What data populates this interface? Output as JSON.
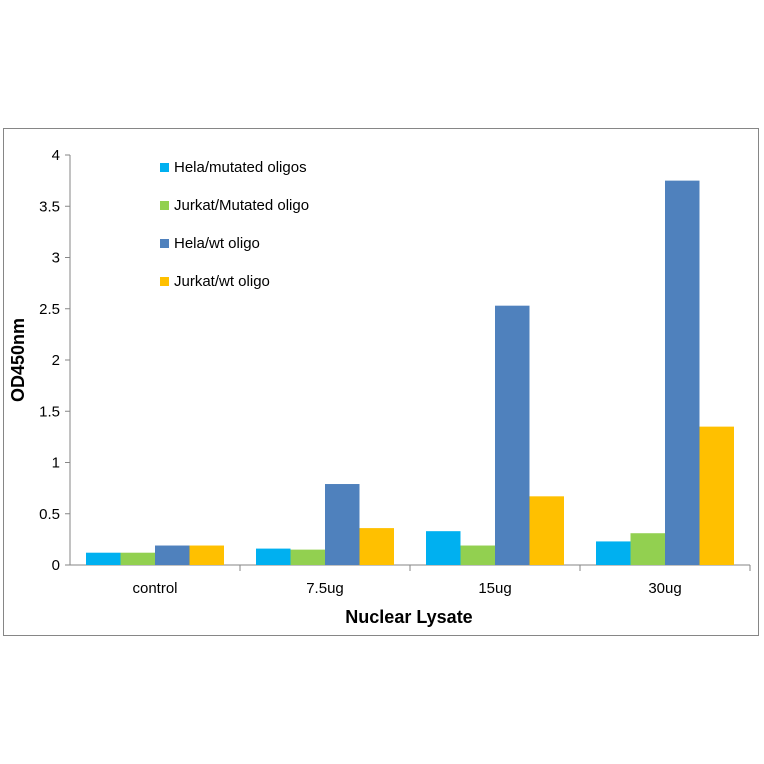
{
  "chart_data": {
    "type": "bar",
    "title": "",
    "xlabel": "Nuclear Lysate",
    "ylabel": "OD450nm",
    "ylim": [
      0,
      4
    ],
    "yticks": [
      "0",
      "0.5",
      "1",
      "1.5",
      "2",
      "2.5",
      "3",
      "3.5",
      "4"
    ],
    "grid": false,
    "legend_position": "top-left",
    "categories": [
      "control",
      "7.5ug",
      "15ug",
      "30ug"
    ],
    "series": [
      {
        "name": "Hela/mutated oligos",
        "color": "#00b0f0",
        "values": [
          0.12,
          0.16,
          0.33,
          0.23
        ]
      },
      {
        "name": "Jurkat/Mutated oligo",
        "color": "#92d050",
        "values": [
          0.12,
          0.15,
          0.19,
          0.31
        ]
      },
      {
        "name": "Hela/wt oligo",
        "color": "#4f81bd",
        "values": [
          0.19,
          0.79,
          2.53,
          3.75
        ]
      },
      {
        "name": "Jurkat/wt oligo",
        "color": "#ffc000",
        "values": [
          0.19,
          0.36,
          0.67,
          1.35
        ]
      }
    ]
  }
}
